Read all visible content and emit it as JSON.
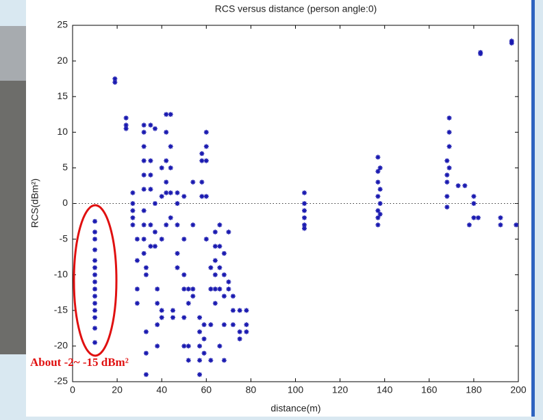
{
  "chart_data": {
    "type": "scatter",
    "title": "RCS versus distance (person angle:0)",
    "x_label": "distance(m)",
    "y_label": "RCS(dBm²)",
    "annotation": "About -2~ -15 dBm²",
    "color": "#1a1ab0",
    "reference_line": 0,
    "xlim": [
      0,
      200
    ],
    "xticks": [
      0,
      20,
      40,
      60,
      80,
      100,
      120,
      140,
      160,
      180,
      200
    ],
    "ylim": [
      -25,
      25
    ],
    "yticks": [
      -25,
      -20,
      -15,
      -10,
      -5,
      0,
      5,
      10,
      15,
      20,
      25
    ],
    "x": [
      10,
      10,
      10,
      10,
      10,
      10,
      10,
      10,
      10,
      10,
      10,
      10,
      10,
      10,
      10,
      19,
      19,
      24,
      24,
      24,
      27,
      27,
      27,
      27,
      27,
      29,
      29,
      29,
      29,
      32,
      32,
      32,
      32,
      32,
      32,
      32,
      32,
      32,
      32,
      33,
      33,
      33,
      33,
      33,
      35,
      35,
      35,
      35,
      35,
      35,
      37,
      37,
      37,
      37,
      38,
      38,
      38,
      38,
      40,
      40,
      40,
      40,
      40,
      42,
      42,
      42,
      42,
      42,
      42,
      44,
      44,
      44,
      44,
      44,
      45,
      45,
      47,
      47,
      47,
      47,
      47,
      50,
      50,
      50,
      50,
      50,
      50,
      52,
      52,
      52,
      52,
      54,
      54,
      54,
      54,
      57,
      57,
      57,
      57,
      57,
      58,
      58,
      58,
      58,
      59,
      59,
      59,
      60,
      60,
      60,
      60,
      60,
      62,
      62,
      62,
      62,
      64,
      64,
      64,
      64,
      64,
      64,
      66,
      66,
      66,
      66,
      66,
      68,
      68,
      68,
      68,
      68,
      70,
      70,
      70,
      72,
      72,
      72,
      75,
      75,
      75,
      78,
      78,
      78,
      104,
      104,
      104,
      104,
      104,
      104,
      137,
      137,
      137,
      137,
      137,
      137,
      137,
      138,
      138,
      138,
      138,
      168,
      168,
      168,
      168,
      168,
      169,
      169,
      169,
      169,
      173,
      176,
      178,
      180,
      180,
      180,
      182,
      183,
      183,
      192,
      192,
      197,
      197,
      199
    ],
    "y": [
      -2.5,
      -4,
      -5,
      -6.5,
      -8,
      -9,
      -10,
      -11,
      -12,
      -13,
      -14,
      -15,
      -16,
      -17.5,
      -19.5,
      17,
      17.5,
      12,
      11,
      10.5,
      -1,
      -2,
      1.5,
      0,
      -3,
      -5,
      -8,
      -12,
      -14,
      11,
      10,
      8,
      6,
      4,
      2,
      -1,
      -3,
      -5,
      -7,
      -9,
      -10,
      -18,
      -21,
      -24,
      11,
      6,
      4,
      2,
      -3,
      -6,
      10.5,
      0,
      -4,
      -6,
      -12,
      -14,
      -17,
      -20,
      5,
      1,
      -5,
      -15,
      -16,
      12.5,
      10,
      6,
      3,
      1.5,
      -3,
      12.5,
      8,
      5,
      1.5,
      -2,
      -15,
      -16,
      1.5,
      0,
      -3,
      -7,
      -9,
      1,
      -5,
      -10,
      -12,
      -16,
      -20,
      -12,
      -14,
      -20,
      -22,
      3,
      -3,
      -12,
      -13,
      -16,
      -18,
      -20,
      -22,
      -24,
      7,
      6,
      3,
      1,
      -17,
      -19,
      -21,
      10,
      8,
      6,
      1,
      -5,
      -9,
      -12,
      -17,
      -22,
      -4,
      -6,
      -8,
      -10,
      -12,
      -14,
      -3,
      -6,
      -9,
      -12,
      -20,
      -7,
      -10,
      -13,
      -17,
      -22,
      -4,
      -11,
      -12,
      -13,
      -15,
      -17,
      -15,
      -18,
      -19,
      -15,
      -17,
      -18,
      1.5,
      0,
      -1,
      -2,
      -3,
      -3.5,
      6.5,
      4.5,
      3,
      1,
      -1,
      -2,
      -3,
      5,
      2,
      0,
      -1.5,
      6,
      4,
      3,
      1,
      -0.5,
      12,
      10,
      8,
      5,
      2.5,
      2.5,
      -3,
      1,
      0,
      -2,
      -2,
      21,
      21.2,
      -2,
      -3,
      22.5,
      22.8,
      -3
    ]
  }
}
